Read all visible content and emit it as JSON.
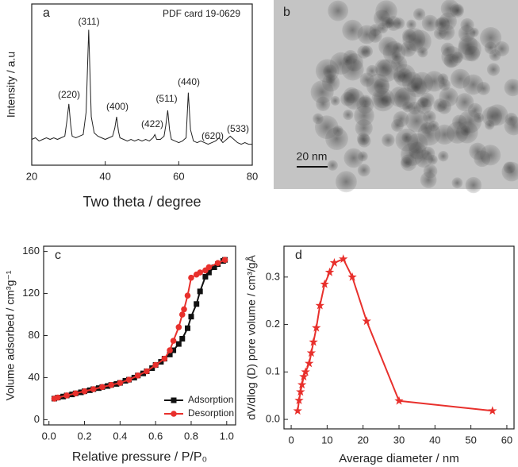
{
  "chart_data": [
    {
      "type": "line",
      "panel_label": "a",
      "annotation": "PDF card 19-0629",
      "peak_labels": [
        "(220)",
        "(311)",
        "(400)",
        "(422)",
        "(511)",
        "(440)",
        "(620)",
        "(533)"
      ],
      "xlabel": "Two theta / degree",
      "ylabel": "Intensity / a.u",
      "xlim": [
        20,
        80
      ],
      "xticks": [
        20,
        40,
        60,
        80
      ],
      "ylim": [
        0,
        100
      ],
      "series": [
        {
          "color": "#222222",
          "marker": "none",
          "x": [
            20,
            21,
            22,
            23,
            24,
            25,
            26,
            27,
            28,
            29,
            29.6,
            30.1,
            30.6,
            31,
            32,
            33,
            34,
            34.8,
            35.5,
            36.2,
            37,
            38,
            39,
            40,
            41,
            42,
            42.6,
            43.1,
            43.6,
            44,
            45,
            46,
            47,
            48,
            49,
            50,
            51,
            52,
            53,
            53.5,
            54,
            55,
            56,
            56.5,
            57,
            57.5,
            58,
            59,
            60,
            61,
            62,
            62.6,
            63.2,
            64,
            65,
            66,
            67,
            68,
            69,
            70,
            71,
            72,
            73,
            74,
            75,
            76,
            77,
            78,
            79,
            80
          ],
          "values": [
            16,
            17,
            15,
            16,
            17,
            16,
            17,
            16,
            17,
            18,
            28,
            38,
            25,
            18,
            17,
            18,
            19,
            33,
            84,
            30,
            20,
            18,
            17,
            16,
            17,
            18,
            23,
            30,
            21,
            17,
            16,
            15,
            16,
            15,
            16,
            15,
            16,
            15,
            17,
            19,
            16,
            16,
            18,
            25,
            34,
            22,
            16,
            15,
            14,
            15,
            17,
            45,
            22,
            15,
            14,
            15,
            14,
            13,
            14,
            15,
            17,
            14,
            16,
            18,
            16,
            14,
            13,
            14,
            13,
            13
          ]
        }
      ]
    },
    {
      "type": "line",
      "panel_label": "c",
      "xlabel": "Relative pressure / P/P₀",
      "ylabel": "Volume adsorbed / cm³g⁻¹",
      "xlim": [
        -0.03,
        1.05
      ],
      "xticks": [
        {
          "value": 0,
          "label": "0.0"
        },
        0.2,
        0.4,
        0.6,
        0.8,
        {
          "value": 1,
          "label": "1.0"
        }
      ],
      "ylim": [
        -5,
        165
      ],
      "yticks": [
        0,
        40,
        80,
        120,
        160
      ],
      "legend": "lower right",
      "series": [
        {
          "name": "Adsorption",
          "color": "#111111",
          "marker": "square",
          "x": [
            0.03,
            0.05,
            0.08,
            0.1,
            0.13,
            0.15,
            0.18,
            0.2,
            0.23,
            0.25,
            0.28,
            0.3,
            0.33,
            0.35,
            0.38,
            0.4,
            0.43,
            0.45,
            0.48,
            0.5,
            0.53,
            0.55,
            0.58,
            0.6,
            0.63,
            0.65,
            0.68,
            0.7,
            0.73,
            0.75,
            0.78,
            0.8,
            0.83,
            0.85,
            0.88,
            0.9,
            0.93,
            0.95,
            0.98,
            0.99
          ],
          "values": [
            20,
            21,
            22,
            23,
            24,
            25,
            26,
            27,
            28,
            29,
            30,
            31,
            32,
            33,
            34,
            35,
            37,
            38,
            40,
            42,
            44,
            46,
            49,
            52,
            55,
            58,
            62,
            66,
            72,
            77,
            87,
            98,
            110,
            122,
            136,
            140,
            145,
            148,
            151,
            152
          ]
        },
        {
          "name": "Desorption",
          "color": "#e8302c",
          "marker": "circle",
          "x": [
            0.99,
            0.95,
            0.9,
            0.88,
            0.85,
            0.83,
            0.8,
            0.78,
            0.76,
            0.75,
            0.73,
            0.7,
            0.68,
            0.65,
            0.6,
            0.55,
            0.5,
            0.45,
            0.4,
            0.35,
            0.3,
            0.25,
            0.2,
            0.15,
            0.1,
            0.05,
            0.03
          ],
          "values": [
            152,
            149,
            145,
            142,
            140,
            138,
            135,
            118,
            105,
            100,
            88,
            75,
            66,
            58,
            52,
            46,
            42,
            38,
            35,
            33,
            31,
            29,
            27,
            25,
            23,
            21,
            20
          ]
        }
      ]
    },
    {
      "type": "line",
      "panel_label": "d",
      "xlabel": "Average diameter / nm",
      "ylabel": "dV/dlog (D) pore volume / cm³/gÅ",
      "xlim": [
        -2,
        62
      ],
      "xticks": [
        0,
        10,
        20,
        30,
        40,
        50,
        60
      ],
      "ylim": [
        -0.02,
        0.365
      ],
      "yticks": [
        {
          "value": 0,
          "label": "0.0"
        },
        0.1,
        0.2,
        0.3
      ],
      "series": [
        {
          "color": "#e8302c",
          "marker": "star",
          "x": [
            1.8,
            2.2,
            2.6,
            3,
            3.5,
            4,
            5,
            5.6,
            6.2,
            7,
            8,
            9.3,
            10.7,
            12,
            14.5,
            17,
            21,
            30,
            56
          ],
          "values": [
            0.018,
            0.04,
            0.058,
            0.073,
            0.09,
            0.1,
            0.118,
            0.14,
            0.163,
            0.193,
            0.24,
            0.285,
            0.31,
            0.33,
            0.338,
            0.3,
            0.207,
            0.039,
            0.018
          ]
        }
      ]
    }
  ],
  "image_panel": {
    "panel_label": "b",
    "scale_bar": "20 nm"
  }
}
